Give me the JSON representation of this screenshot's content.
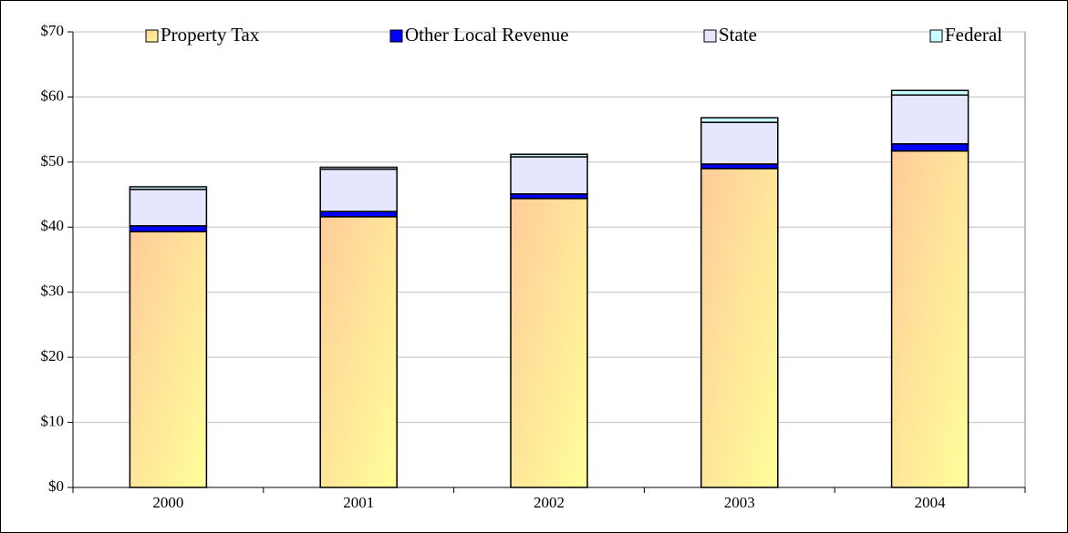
{
  "chart_data": {
    "type": "stacked_bar",
    "categories": [
      "2000",
      "2001",
      "2002",
      "2003",
      "2004"
    ],
    "series": [
      {
        "name": "Property Tax",
        "color": "#ffcc99",
        "values": [
          39.3,
          41.6,
          44.4,
          49.0,
          51.7
        ]
      },
      {
        "name": "Other Local Revenue",
        "color": "#0000ff",
        "values": [
          0.9,
          0.8,
          0.7,
          0.7,
          1.1
        ]
      },
      {
        "name": "State",
        "color": "#e6e6ff",
        "values": [
          5.6,
          6.5,
          5.7,
          6.4,
          7.5
        ]
      },
      {
        "name": "Federal",
        "color": "#ccffff",
        "values": [
          0.4,
          0.3,
          0.4,
          0.7,
          0.7
        ]
      }
    ],
    "ylim": [
      0,
      70
    ],
    "yticks": [
      {
        "value": 0,
        "label": "$0"
      },
      {
        "value": 10,
        "label": "$10"
      },
      {
        "value": 20,
        "label": "$20"
      },
      {
        "value": 30,
        "label": "$30"
      },
      {
        "value": 40,
        "label": "$40"
      },
      {
        "value": 50,
        "label": "$50"
      },
      {
        "value": 60,
        "label": "$60"
      },
      {
        "value": 70,
        "label": "$70"
      }
    ],
    "grid": true,
    "legend": "top"
  }
}
